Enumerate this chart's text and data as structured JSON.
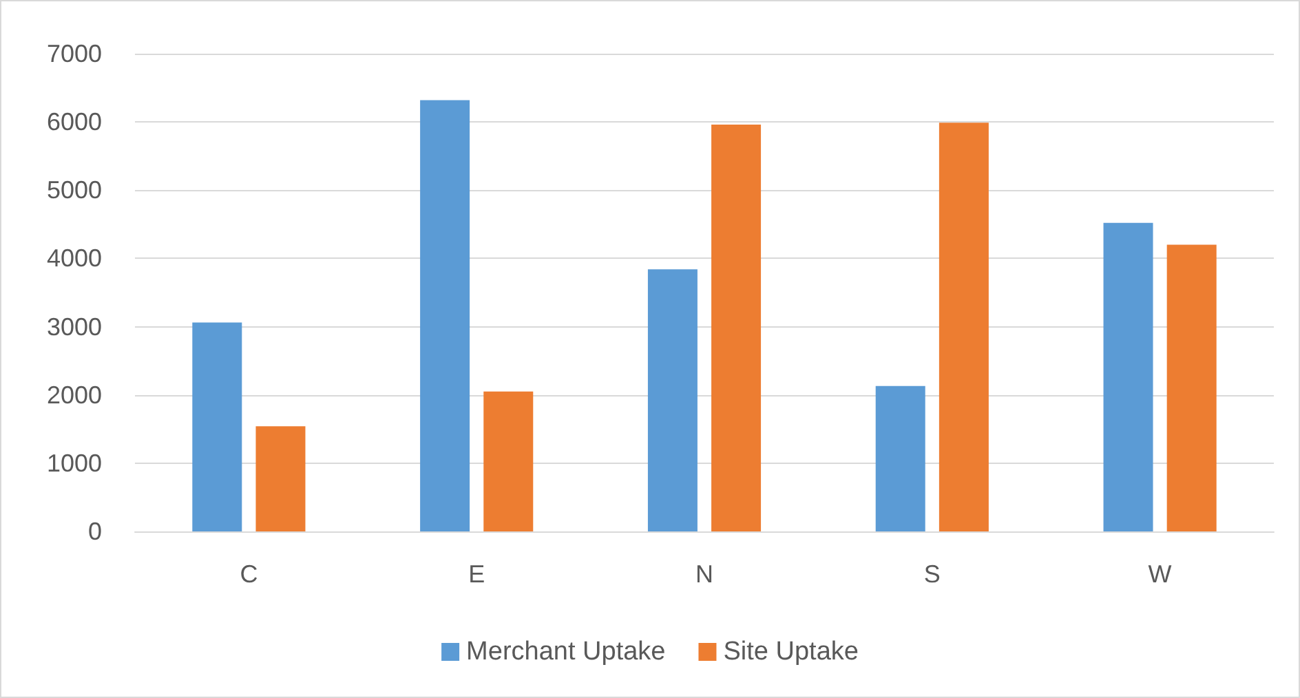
{
  "chart_data": {
    "type": "bar",
    "categories": [
      "C",
      "E",
      "N",
      "S",
      "W"
    ],
    "series": [
      {
        "name": "Merchant Uptake",
        "color": "#5b9bd5",
        "values": [
          3060,
          6320,
          3840,
          2130,
          4520
        ]
      },
      {
        "name": "Site Uptake",
        "color": "#ed7d31",
        "values": [
          1540,
          2050,
          5960,
          5990,
          4200
        ]
      }
    ],
    "ylim": [
      0,
      7000
    ],
    "yticks": [
      0,
      1000,
      2000,
      3000,
      4000,
      5000,
      6000,
      7000
    ],
    "grid": "y",
    "legend": "bottom"
  }
}
